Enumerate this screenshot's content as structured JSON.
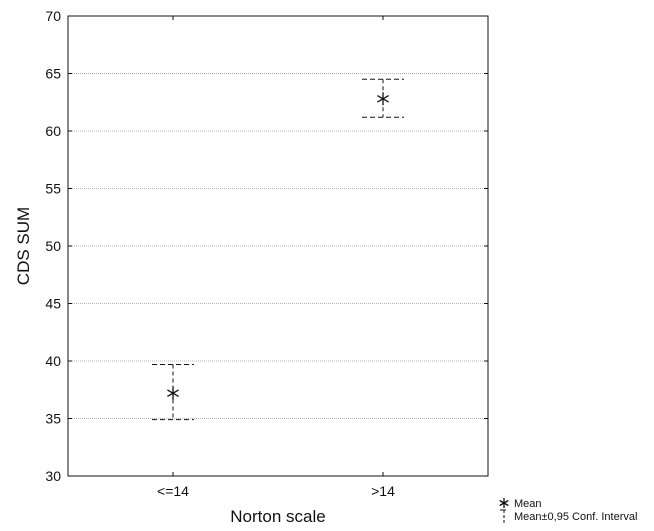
{
  "chart_data": {
    "type": "scatter",
    "xlabel": "Norton scale",
    "ylabel": "CDS SUM",
    "ylim": [
      30,
      70
    ],
    "yticks": [
      30,
      35,
      40,
      45,
      50,
      55,
      60,
      65,
      70
    ],
    "grid": "horizontal dotted",
    "categories": [
      "<=14",
      ">14"
    ],
    "series": [
      {
        "name": "Mean",
        "values": [
          37.2,
          62.8
        ],
        "ci_lower": [
          34.9,
          61.2
        ],
        "ci_upper": [
          39.7,
          64.5
        ]
      }
    ],
    "legend": {
      "placement": "bottom-right",
      "mean_label": "Mean",
      "ci_label": "Mean±0,95 Conf. Interval"
    },
    "colors": {
      "marker": "#111111",
      "grid": "#9a9a9a",
      "axis": "#111111"
    }
  }
}
